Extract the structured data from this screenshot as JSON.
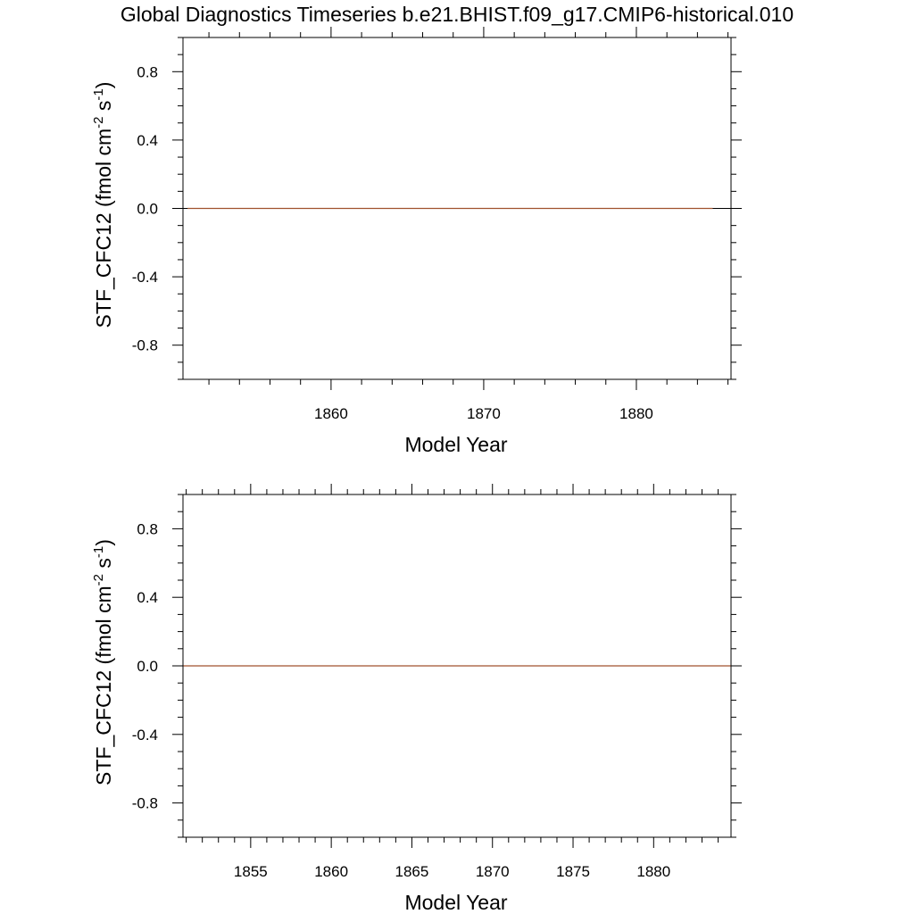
{
  "title": "Global Diagnostics Timeseries b.e21.BHIST.f09_g17.CMIP6-historical.010",
  "colors": {
    "series": "#a0522d",
    "axis": "#000000",
    "zero_line": "#000000"
  },
  "chart_data": [
    {
      "type": "line",
      "xlabel": "Model Year",
      "ylabel": {
        "main": "STF_CFC12 (fmol cm",
        "sup1": "-2",
        "mid": " s",
        "sup2": "-1",
        "end": ")"
      },
      "xlim": [
        1850.3,
        1886.2
      ],
      "ylim": [
        -1.0,
        1.0
      ],
      "x_major_ticks": [
        1860,
        1870,
        1880
      ],
      "x_minor_step": 2,
      "y_major_ticks": [
        -0.8,
        -0.4,
        0.0,
        0.4,
        0.8
      ],
      "y_major_tick_labels": [
        "-0.8",
        "-0.4",
        "0.0",
        "0.4",
        "0.8"
      ],
      "y_minor_step": 0.1,
      "zero_line": true,
      "series": [
        {
          "x": [
            1850.6,
            1885.0
          ],
          "values": [
            0.0,
            0.0
          ]
        }
      ]
    },
    {
      "type": "line",
      "xlabel": "Model Year",
      "ylabel": {
        "main": "STF_CFC12 (fmol cm",
        "sup1": "-2",
        "mid": " s",
        "sup2": "-1",
        "end": ")"
      },
      "xlim": [
        1850.8,
        1884.8
      ],
      "ylim": [
        -1.0,
        1.0
      ],
      "x_major_ticks": [
        1855,
        1860,
        1865,
        1870,
        1875,
        1880
      ],
      "x_minor_step": 1,
      "y_major_ticks": [
        -0.8,
        -0.4,
        0.0,
        0.4,
        0.8
      ],
      "y_major_tick_labels": [
        "-0.8",
        "-0.4",
        "0.0",
        "0.4",
        "0.8"
      ],
      "y_minor_step": 0.1,
      "zero_line": true,
      "series": [
        {
          "x": [
            1850.8,
            1884.8
          ],
          "values": [
            0.0,
            0.0
          ]
        }
      ]
    }
  ]
}
